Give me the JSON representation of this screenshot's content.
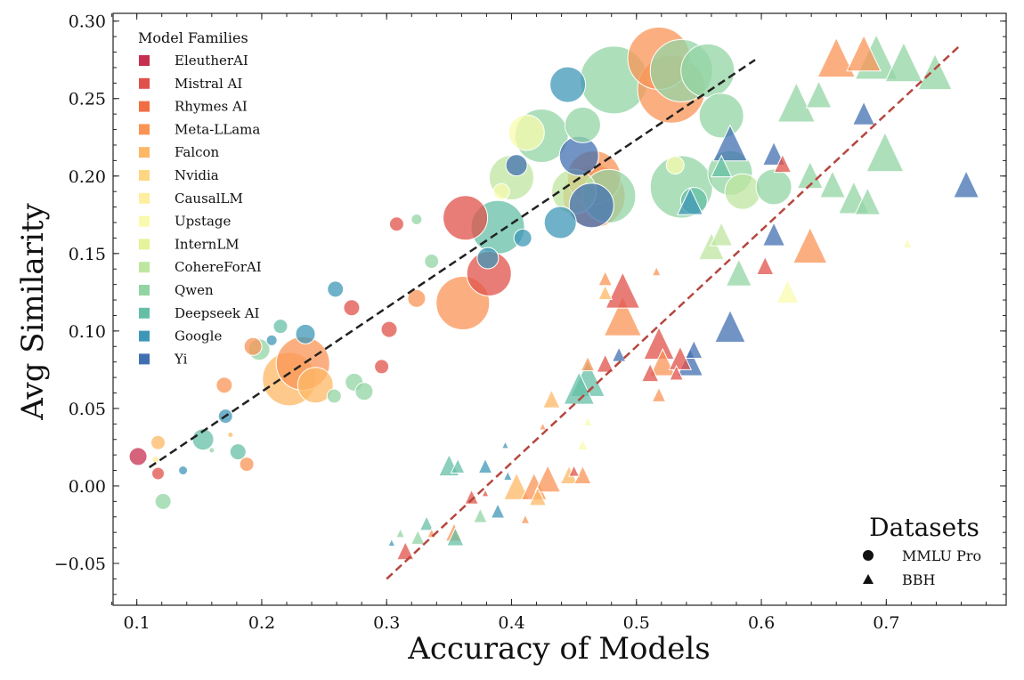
{
  "chart_data": {
    "type": "scatter",
    "xlabel": "Accuracy of Models",
    "ylabel": "Avg Similarity",
    "xlim": [
      0.081,
      0.796
    ],
    "ylim": [
      -0.077,
      0.305
    ],
    "xticks": [
      "0.1",
      "0.2",
      "0.3",
      "0.4",
      "0.5",
      "0.6",
      "0.7"
    ],
    "xtick_values": [
      0.1,
      0.2,
      0.3,
      0.4,
      0.5,
      0.6,
      0.7
    ],
    "yticks": [
      "−0.05",
      "0.00",
      "0.05",
      "0.10",
      "0.15",
      "0.20",
      "0.25",
      "0.30"
    ],
    "ytick_values": [
      -0.05,
      0,
      0.05,
      0.1,
      0.15,
      0.2,
      0.25,
      0.3
    ],
    "grid": false,
    "legend_families": {
      "title": "Model Families",
      "placement": "top-left",
      "items": [
        {
          "label": "EleutherAI",
          "color": "#c62f4f"
        },
        {
          "label": "Mistral AI",
          "color": "#e0514a"
        },
        {
          "label": "Rhymes AI",
          "color": "#f26d44"
        },
        {
          "label": "Meta-LLama",
          "color": "#f99455"
        },
        {
          "label": "Falcon",
          "color": "#fdb866"
        },
        {
          "label": "Nvidia",
          "color": "#fed683"
        },
        {
          "label": "CausalLM",
          "color": "#feeea0"
        },
        {
          "label": "Upstage",
          "color": "#f8fbae"
        },
        {
          "label": "InternLM",
          "color": "#e3f49a"
        },
        {
          "label": "CohereForAI",
          "color": "#bfe6a0"
        },
        {
          "label": "Qwen",
          "color": "#93d4a4"
        },
        {
          "label": "Deepseek AI",
          "color": "#64bfa6"
        },
        {
          "label": "Google",
          "color": "#3f97b7"
        },
        {
          "label": "Yi",
          "color": "#4170b2"
        }
      ]
    },
    "legend_datasets": {
      "title": "Datasets",
      "placement": "bottom-right",
      "items": [
        {
          "label": "MMLU Pro",
          "marker": "circle"
        },
        {
          "label": "BBH",
          "marker": "triangle"
        }
      ]
    },
    "point_format": [
      "accuracy",
      "avg_similarity",
      "relative_size",
      "family_index"
    ],
    "series": [
      {
        "name": "MMLU Pro",
        "marker": "circle",
        "points": [
          [
            0.101,
            0.019,
            10,
            0
          ],
          [
            0.117,
            0.008,
            7,
            1
          ],
          [
            0.117,
            0.028,
            8,
            4
          ],
          [
            0.121,
            -0.01,
            9,
            10
          ],
          [
            0.137,
            0.01,
            5,
            12
          ],
          [
            0.153,
            0.03,
            12,
            11
          ],
          [
            0.17,
            0.065,
            9,
            3
          ],
          [
            0.171,
            0.045,
            8,
            12
          ],
          [
            0.181,
            0.022,
            9,
            11
          ],
          [
            0.188,
            0.014,
            8,
            3
          ],
          [
            0.198,
            0.088,
            12,
            10
          ],
          [
            0.193,
            0.09,
            10,
            3
          ],
          [
            0.215,
            0.103,
            8,
            11
          ],
          [
            0.208,
            0.094,
            6,
            12
          ],
          [
            0.235,
            0.098,
            11,
            12
          ],
          [
            0.222,
            0.069,
            30,
            4
          ],
          [
            0.233,
            0.079,
            30,
            3
          ],
          [
            0.243,
            0.065,
            20,
            4
          ],
          [
            0.258,
            0.058,
            8,
            10
          ],
          [
            0.259,
            0.127,
            9,
            12
          ],
          [
            0.274,
            0.067,
            10,
            10
          ],
          [
            0.272,
            0.115,
            9,
            1
          ],
          [
            0.282,
            0.061,
            10,
            10
          ],
          [
            0.296,
            0.077,
            8,
            1
          ],
          [
            0.302,
            0.101,
            9,
            1
          ],
          [
            0.308,
            0.169,
            8,
            1
          ],
          [
            0.324,
            0.121,
            10,
            3
          ],
          [
            0.324,
            0.172,
            6,
            10
          ],
          [
            0.336,
            0.145,
            8,
            10
          ],
          [
            0.363,
            0.173,
            25,
            1
          ],
          [
            0.361,
            0.118,
            30,
            3
          ],
          [
            0.382,
            0.137,
            25,
            1
          ],
          [
            0.381,
            0.147,
            12,
            12
          ],
          [
            0.389,
            0.167,
            30,
            11
          ],
          [
            0.4,
            0.199,
            25,
            9
          ],
          [
            0.404,
            0.207,
            12,
            13
          ],
          [
            0.412,
            0.228,
            20,
            7
          ],
          [
            0.409,
            0.16,
            10,
            12
          ],
          [
            0.424,
            0.226,
            30,
            10
          ],
          [
            0.439,
            0.17,
            18,
            12
          ],
          [
            0.445,
            0.259,
            20,
            12
          ],
          [
            0.457,
            0.233,
            20,
            10
          ],
          [
            0.454,
            0.213,
            22,
            13
          ],
          [
            0.45,
            0.19,
            25,
            9
          ],
          [
            0.466,
            0.187,
            35,
            3
          ],
          [
            0.466,
            0.199,
            30,
            3
          ],
          [
            0.464,
            0.181,
            25,
            13
          ],
          [
            0.482,
            0.262,
            38,
            10
          ],
          [
            0.478,
            0.187,
            30,
            10
          ],
          [
            0.518,
            0.276,
            35,
            3
          ],
          [
            0.528,
            0.256,
            38,
            3
          ],
          [
            0.536,
            0.268,
            35,
            10
          ],
          [
            0.557,
            0.268,
            30,
            10
          ],
          [
            0.536,
            0.193,
            35,
            10
          ],
          [
            0.546,
            0.184,
            15,
            11
          ],
          [
            0.568,
            0.239,
            25,
            10
          ],
          [
            0.575,
            0.202,
            25,
            10
          ],
          [
            0.585,
            0.19,
            20,
            9
          ],
          [
            0.61,
            0.193,
            20,
            10
          ],
          [
            0.531,
            0.207,
            10,
            7
          ],
          [
            0.392,
            0.19,
            9,
            7
          ],
          [
            0.115,
            0.017,
            4,
            6
          ],
          [
            0.16,
            0.023,
            3,
            10
          ],
          [
            0.175,
            0.033,
            3,
            4
          ]
        ]
      },
      {
        "name": "BBH",
        "marker": "triangle",
        "points": [
          [
            0.575,
            0.219,
            20,
            13
          ],
          [
            0.543,
            0.182,
            15,
            12
          ],
          [
            0.568,
            0.205,
            12,
            11
          ],
          [
            0.628,
            0.245,
            22,
            10
          ],
          [
            0.646,
            0.251,
            15,
            10
          ],
          [
            0.66,
            0.274,
            22,
            3
          ],
          [
            0.682,
            0.277,
            20,
            3
          ],
          [
            0.692,
            0.274,
            25,
            10
          ],
          [
            0.714,
            0.271,
            22,
            10
          ],
          [
            0.739,
            0.265,
            20,
            10
          ],
          [
            0.699,
            0.213,
            22,
            10
          ],
          [
            0.682,
            0.239,
            13,
            13
          ],
          [
            0.61,
            0.213,
            13,
            13
          ],
          [
            0.617,
            0.207,
            10,
            1
          ],
          [
            0.639,
            0.199,
            15,
            10
          ],
          [
            0.657,
            0.193,
            15,
            10
          ],
          [
            0.674,
            0.184,
            18,
            10
          ],
          [
            0.685,
            0.182,
            15,
            10
          ],
          [
            0.764,
            0.193,
            15,
            13
          ],
          [
            0.61,
            0.161,
            13,
            13
          ],
          [
            0.639,
            0.153,
            20,
            3
          ],
          [
            0.621,
            0.124,
            13,
            7
          ],
          [
            0.568,
            0.161,
            13,
            9
          ],
          [
            0.582,
            0.136,
            15,
            10
          ],
          [
            0.56,
            0.153,
            15,
            9
          ],
          [
            0.603,
            0.141,
            10,
            1
          ],
          [
            0.717,
            0.156,
            5,
            7
          ],
          [
            0.575,
            0.101,
            18,
            13
          ],
          [
            0.489,
            0.124,
            20,
            1
          ],
          [
            0.489,
            0.107,
            22,
            3
          ],
          [
            0.518,
            0.09,
            18,
            1
          ],
          [
            0.521,
            0.078,
            15,
            3
          ],
          [
            0.535,
            0.081,
            13,
            1
          ],
          [
            0.543,
            0.078,
            15,
            13
          ],
          [
            0.546,
            0.087,
            10,
            13
          ],
          [
            0.461,
            0.067,
            20,
            11
          ],
          [
            0.454,
            0.061,
            18,
            11
          ],
          [
            0.486,
            0.084,
            8,
            13
          ],
          [
            0.475,
            0.078,
            10,
            1
          ],
          [
            0.511,
            0.072,
            10,
            1
          ],
          [
            0.432,
            0.055,
            10,
            4
          ],
          [
            0.532,
            0.072,
            8,
            1
          ],
          [
            0.518,
            0.058,
            8,
            3
          ],
          [
            0.461,
            0.078,
            8,
            3
          ],
          [
            0.475,
            0.133,
            8,
            3
          ],
          [
            0.475,
            0.124,
            8,
            4
          ],
          [
            0.35,
            0.012,
            12,
            11
          ],
          [
            0.357,
            0.012,
            8,
            11
          ],
          [
            0.379,
            0.012,
            8,
            12
          ],
          [
            0.395,
            0.026,
            4,
            12
          ],
          [
            0.368,
            -0.008,
            8,
            1
          ],
          [
            0.389,
            -0.017,
            8,
            12
          ],
          [
            0.404,
            -0.002,
            15,
            4
          ],
          [
            0.418,
            -0.002,
            15,
            3
          ],
          [
            0.429,
            0.003,
            15,
            3
          ],
          [
            0.421,
            -0.008,
            10,
            4
          ],
          [
            0.446,
            0.006,
            10,
            4
          ],
          [
            0.457,
            0.006,
            10,
            3
          ],
          [
            0.45,
            0.009,
            6,
            1
          ],
          [
            0.375,
            -0.02,
            8,
            10
          ],
          [
            0.411,
            -0.022,
            5,
            3
          ],
          [
            0.332,
            -0.025,
            8,
            11
          ],
          [
            0.325,
            -0.034,
            8,
            10
          ],
          [
            0.315,
            -0.043,
            10,
            1
          ],
          [
            0.354,
            -0.031,
            10,
            3
          ],
          [
            0.355,
            -0.034,
            10,
            11
          ],
          [
            0.311,
            -0.031,
            5,
            10
          ],
          [
            0.304,
            -0.037,
            4,
            12
          ],
          [
            0.336,
            -0.031,
            5,
            3
          ],
          [
            0.457,
            0.026,
            6,
            7
          ],
          [
            0.461,
            0.041,
            5,
            7
          ],
          [
            0.425,
            0.038,
            4,
            3
          ],
          [
            0.397,
            0.006,
            5,
            12
          ],
          [
            0.379,
            -0.005,
            4,
            1
          ],
          [
            0.516,
            0.138,
            5,
            3
          ]
        ]
      }
    ],
    "fit_lines": [
      {
        "name": "MMLU Pro fit",
        "color": "#222222",
        "x": [
          0.11,
          0.595
        ],
        "y": [
          0.012,
          0.275
        ]
      },
      {
        "name": "BBH fit",
        "color": "#b5473f",
        "x": [
          0.3,
          0.76
        ],
        "y": [
          -0.06,
          0.285
        ]
      }
    ]
  }
}
